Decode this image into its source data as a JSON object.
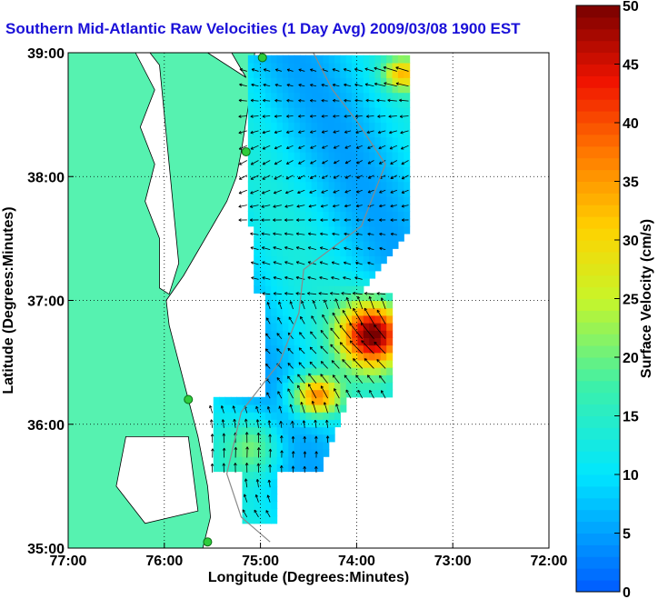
{
  "title": "Southern Mid-Atlantic Raw Velocities (1 Day Avg) 2009/03/08 1900 EST",
  "chart_data": {
    "type": "heatmap",
    "xlabel": "Longitude (Degrees:Minutes)",
    "ylabel": "Latitude (Degrees:Minutes)",
    "x_ticks": [
      "77:00",
      "76:00",
      "75:00",
      "74:00",
      "73:00",
      "72:00"
    ],
    "y_ticks": [
      "39:00",
      "38:00",
      "37:00",
      "36:00",
      "35:00"
    ],
    "xlim": [
      -77,
      -72
    ],
    "ylim": [
      35,
      39
    ],
    "grid": true,
    "colorbar": {
      "label": "Surface Velocity (cm/s)",
      "min": 0,
      "max": 50,
      "ticks": [
        "50",
        "45",
        "40",
        "35",
        "30",
        "25",
        "20",
        "15",
        "10",
        "5",
        "0"
      ]
    }
  },
  "colors": {
    "land": "#56f2b0",
    "grid": "#000000",
    "title": "#1a10d8",
    "station": "#2ecc3c"
  }
}
